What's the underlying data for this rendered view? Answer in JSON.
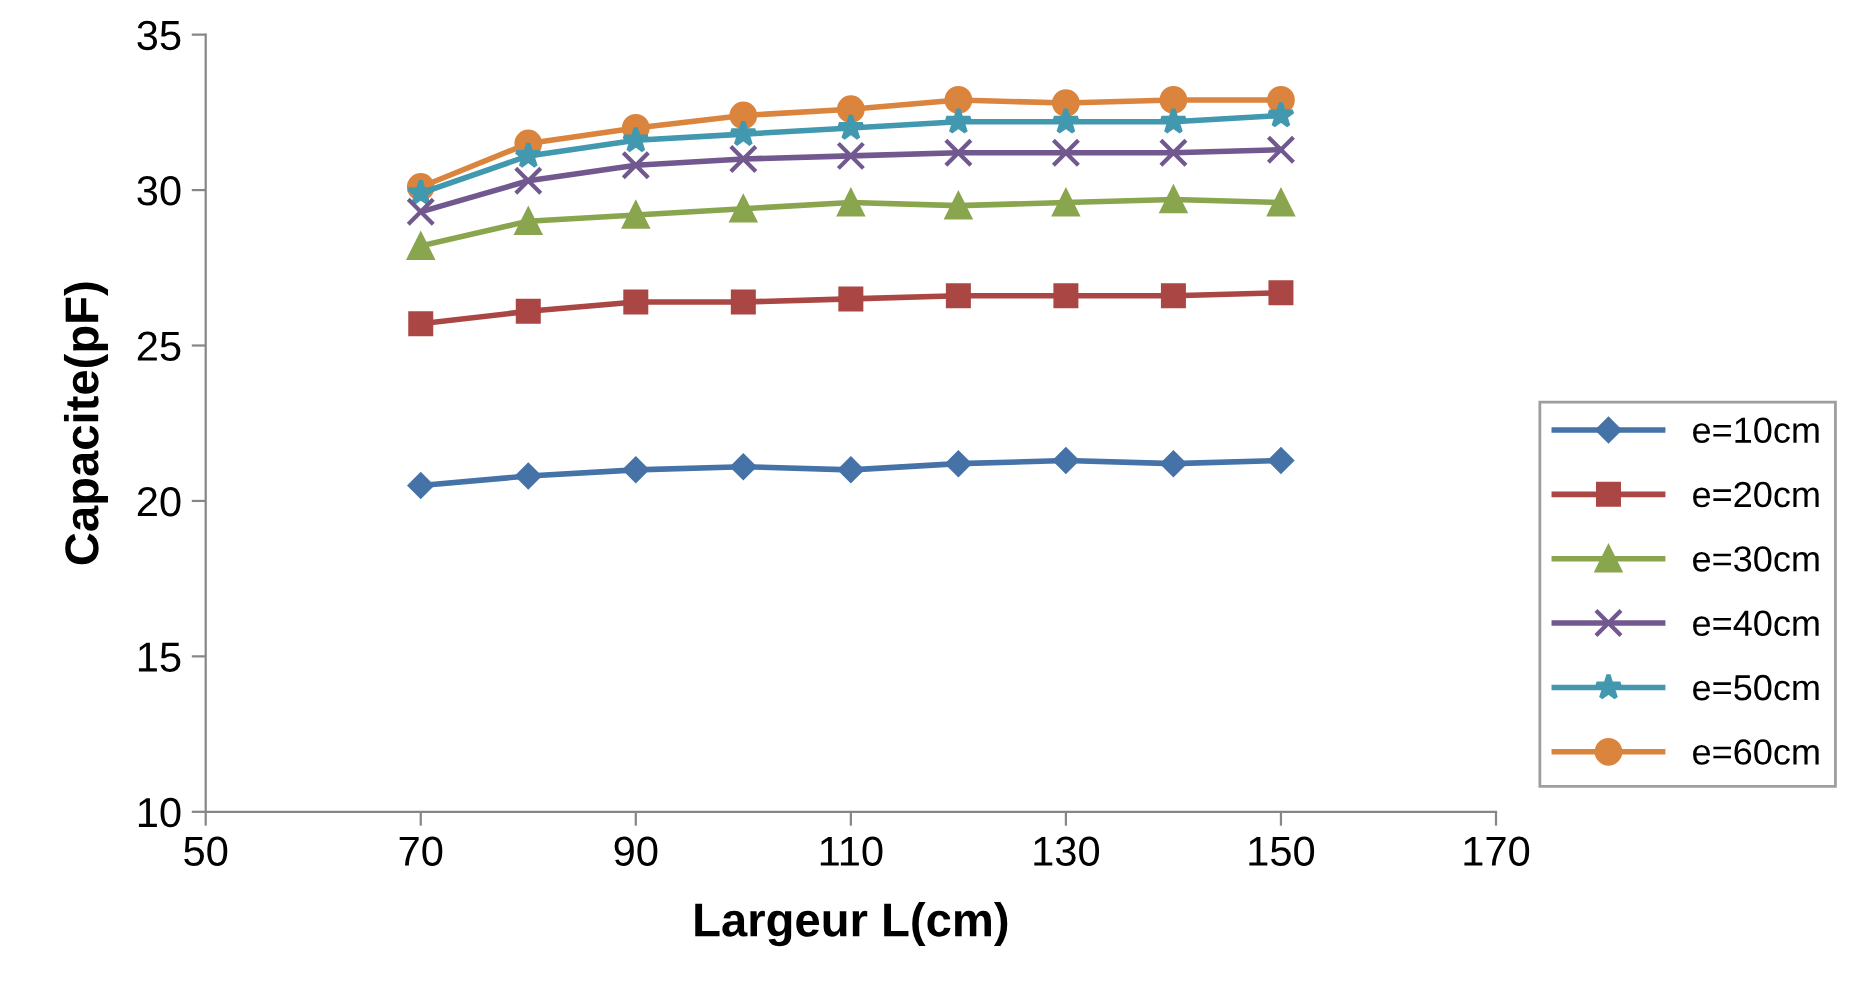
{
  "chart_data": {
    "type": "line",
    "xlabel": "Largeur L(cm)",
    "ylabel": "Capacite(pF)",
    "x": [
      70,
      80,
      90,
      100,
      110,
      120,
      130,
      140,
      150
    ],
    "xlim": [
      50,
      170
    ],
    "xticks": [
      50,
      70,
      90,
      110,
      130,
      150,
      170
    ],
    "ylim": [
      10,
      35
    ],
    "yticks": [
      10,
      15,
      20,
      25,
      30,
      35
    ],
    "grid": false,
    "legend": "right",
    "line_style": "solid",
    "series": [
      {
        "name": "e=10cm",
        "color": "#4572a7",
        "marker": "diamond",
        "values": [
          20.5,
          20.8,
          21.0,
          21.1,
          21.0,
          21.2,
          21.3,
          21.2,
          21.3
        ]
      },
      {
        "name": "e=20cm",
        "color": "#aa4643",
        "marker": "square",
        "values": [
          25.7,
          26.1,
          26.4,
          26.4,
          26.5,
          26.6,
          26.6,
          26.6,
          26.7
        ]
      },
      {
        "name": "e=30cm",
        "color": "#89a54e",
        "marker": "triangle",
        "values": [
          28.2,
          29.0,
          29.2,
          29.4,
          29.6,
          29.5,
          29.6,
          29.7,
          29.6
        ]
      },
      {
        "name": "e=40cm",
        "color": "#71588f",
        "marker": "cross",
        "values": [
          29.3,
          30.3,
          30.8,
          31.0,
          31.1,
          31.2,
          31.2,
          31.2,
          31.3
        ]
      },
      {
        "name": "e=50cm",
        "color": "#4198af",
        "marker": "star",
        "values": [
          29.9,
          31.1,
          31.6,
          31.8,
          32.0,
          32.2,
          32.2,
          32.2,
          32.4
        ]
      },
      {
        "name": "e=60cm",
        "color": "#db843d",
        "marker": "circle",
        "values": [
          30.1,
          31.5,
          32.0,
          32.4,
          32.6,
          32.9,
          32.8,
          32.9,
          32.9
        ]
      }
    ]
  }
}
